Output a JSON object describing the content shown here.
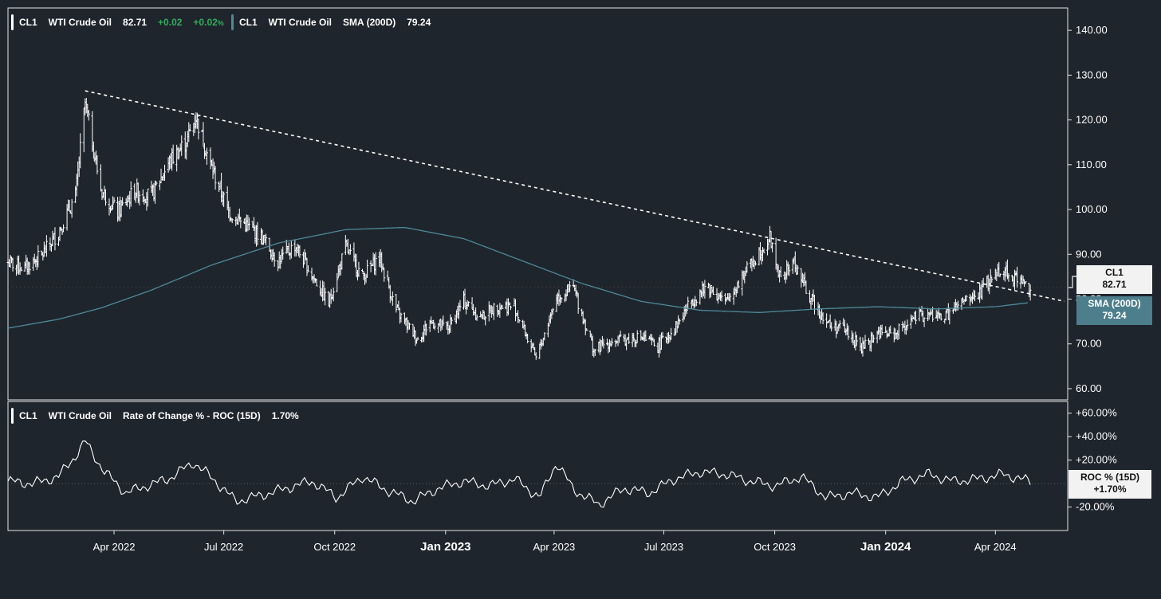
{
  "legend_price": {
    "ticker": "CL1",
    "name": "WTI Crude Oil",
    "last": "82.71",
    "change": "+0.02",
    "change_pct": "+0.02",
    "change_pct_unit": "%"
  },
  "legend_sma": {
    "ticker": "CL1",
    "name": "WTI Crude Oil",
    "label": "SMA (200D)",
    "value": "79.24"
  },
  "legend_roc": {
    "ticker": "CL1",
    "name": "WTI Crude Oil",
    "label": "Rate of Change % - ROC (15D)",
    "value": "1.70%"
  },
  "tags": {
    "price_ticker": "CL1",
    "price_value": "82.71",
    "sma_label": "SMA (200D)",
    "sma_value": "79.24",
    "roc_label": "ROC % (15D)",
    "roc_value": "+1.70%"
  },
  "colors": {
    "background": "#1f252c",
    "price": "#ffffff",
    "sma": "#4d8a9a",
    "trendline": "#ffffff",
    "positive": "#2fae5b",
    "axis_text": "#ffffff"
  },
  "chart_data": [
    {
      "type": "candlestick",
      "title": "",
      "series": [
        {
          "name": "CL1 WTI Crude Oil",
          "x": [
            "2022-01-03",
            "2022-01-17",
            "2022-01-31",
            "2022-02-14",
            "2022-02-28",
            "2022-03-08",
            "2022-03-21",
            "2022-04-04",
            "2022-04-18",
            "2022-05-02",
            "2022-05-16",
            "2022-05-31",
            "2022-06-08",
            "2022-06-20",
            "2022-07-05",
            "2022-07-18",
            "2022-08-01",
            "2022-08-15",
            "2022-08-29",
            "2022-09-12",
            "2022-09-26",
            "2022-10-10",
            "2022-10-24",
            "2022-11-07",
            "2022-11-21",
            "2022-12-09",
            "2022-12-19",
            "2023-01-03",
            "2023-01-16",
            "2023-01-30",
            "2023-02-13",
            "2023-02-27",
            "2023-03-17",
            "2023-04-03",
            "2023-04-17",
            "2023-05-04",
            "2023-05-15",
            "2023-05-29",
            "2023-06-12",
            "2023-06-26",
            "2023-07-10",
            "2023-07-24",
            "2023-08-07",
            "2023-08-21",
            "2023-09-05",
            "2023-09-27",
            "2023-10-06",
            "2023-10-16",
            "2023-10-30",
            "2023-11-16",
            "2023-11-27",
            "2023-12-12",
            "2023-12-26",
            "2024-01-08",
            "2024-01-22",
            "2024-02-05",
            "2024-02-19",
            "2024-03-04",
            "2024-03-18",
            "2024-04-05",
            "2024-04-19",
            "2024-04-30"
          ],
          "values": [
            88.2,
            87.0,
            89.8,
            95.0,
            103.0,
            123.7,
            104.5,
            99.3,
            104.2,
            103.0,
            110.3,
            115.3,
            120.7,
            110.0,
            99.5,
            96.8,
            94.0,
            88.5,
            92.0,
            85.5,
            79.0,
            91.6,
            85.0,
            89.4,
            77.5,
            71.0,
            75.0,
            73.5,
            79.6,
            76.0,
            78.5,
            78.3,
            66.7,
            80.4,
            82.5,
            68.5,
            70.2,
            71.0,
            71.5,
            69.5,
            73.5,
            79.7,
            83.0,
            79.0,
            85.5,
            93.7,
            84.0,
            88.5,
            80.5,
            74.0,
            73.5,
            69.0,
            72.5,
            72.0,
            75.5,
            76.5,
            76.0,
            79.0,
            81.0,
            86.9,
            84.5,
            82.7
          ]
        },
        {
          "name": "SMA (200D)",
          "x": [
            "2022-01-03",
            "2022-02-14",
            "2022-03-21",
            "2022-05-02",
            "2022-06-20",
            "2022-08-15",
            "2022-10-10",
            "2022-11-28",
            "2023-01-16",
            "2023-03-06",
            "2023-04-24",
            "2023-06-12",
            "2023-07-31",
            "2023-09-18",
            "2023-11-06",
            "2023-12-26",
            "2024-02-12",
            "2024-04-01",
            "2024-04-30"
          ],
          "values": [
            73.5,
            75.5,
            78.0,
            82.0,
            87.5,
            92.5,
            95.5,
            96.0,
            93.5,
            88.5,
            83.5,
            79.5,
            77.5,
            77.0,
            77.8,
            78.3,
            77.8,
            78.3,
            79.24
          ]
        }
      ],
      "trendline": {
        "from": [
          "2022-03-08",
          126.5
        ],
        "to": [
          "2024-04-30",
          79.5
        ]
      },
      "xlabel": "",
      "ylabel": "",
      "ylim": [
        57.5,
        145
      ],
      "yticks": [
        "140.00",
        "130.00",
        "120.00",
        "110.00",
        "100.00",
        "90.00",
        "80.00",
        "70.00",
        "60.00"
      ],
      "x_ticks": [
        {
          "label": "Apr 2022",
          "date": "2022-04-01",
          "major": false
        },
        {
          "label": "Jul 2022",
          "date": "2022-07-01",
          "major": false
        },
        {
          "label": "Oct 2022",
          "date": "2022-10-01",
          "major": false
        },
        {
          "label": "Jan 2023",
          "date": "2023-01-01",
          "major": true
        },
        {
          "label": "Apr 2023",
          "date": "2023-04-01",
          "major": false
        },
        {
          "label": "Jul 2023",
          "date": "2023-07-01",
          "major": false
        },
        {
          "label": "Oct 2023",
          "date": "2023-10-01",
          "major": false
        },
        {
          "label": "Jan 2024",
          "date": "2024-01-01",
          "major": true
        },
        {
          "label": "Apr 2024",
          "date": "2024-04-01",
          "major": false
        }
      ],
      "grid": false
    },
    {
      "type": "line",
      "title": "",
      "series": [
        {
          "name": "ROC (15D)",
          "x": [
            "2022-01-03",
            "2022-01-24",
            "2022-02-14",
            "2022-03-01",
            "2022-03-08",
            "2022-03-24",
            "2022-04-11",
            "2022-04-25",
            "2022-05-16",
            "2022-06-06",
            "2022-06-20",
            "2022-07-11",
            "2022-08-01",
            "2022-08-22",
            "2022-09-12",
            "2022-10-03",
            "2022-10-24",
            "2022-11-14",
            "2022-12-05",
            "2022-12-26",
            "2023-01-16",
            "2023-02-06",
            "2023-02-27",
            "2023-03-20",
            "2023-04-03",
            "2023-04-17",
            "2023-05-08",
            "2023-05-29",
            "2023-06-19",
            "2023-07-10",
            "2023-07-31",
            "2023-08-21",
            "2023-09-11",
            "2023-10-02",
            "2023-10-23",
            "2023-11-13",
            "2023-12-04",
            "2023-12-25",
            "2024-01-15",
            "2024-02-05",
            "2024-02-26",
            "2024-03-18",
            "2024-04-08",
            "2024-04-30"
          ],
          "values": [
            2,
            0,
            6,
            25,
            36,
            10,
            -8,
            -3,
            4,
            18,
            6,
            -15,
            -10,
            -4,
            2,
            -12,
            6,
            -6,
            -15,
            -4,
            2,
            -2,
            4,
            -12,
            18,
            -5,
            -18,
            -4,
            -8,
            4,
            10,
            8,
            2,
            -2,
            6,
            -12,
            -8,
            -12,
            2,
            8,
            2,
            4,
            8,
            1.7
          ]
        }
      ],
      "xlabel": "",
      "ylabel": "",
      "ylim": [
        -40,
        70
      ],
      "yticks": [
        "+60.00%",
        "+40.00%",
        "+20.00%",
        "-20.00%"
      ],
      "grid": false
    }
  ]
}
